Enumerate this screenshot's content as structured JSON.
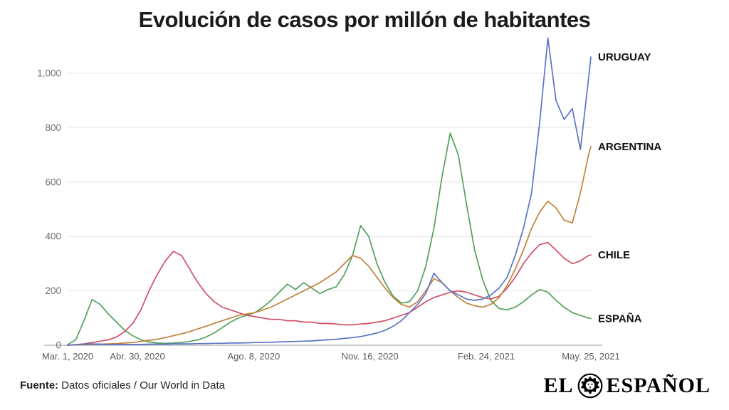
{
  "chart_data": {
    "type": "line",
    "title": "Evolución de casos por millón de habitantes",
    "x_unit": "days since Mar 1, 2020",
    "grid": true,
    "legend_position": "right-of-line-ends",
    "ylim": [
      0,
      1150
    ],
    "y_ticks": [
      0,
      200,
      400,
      600,
      800,
      1000
    ],
    "y_tick_labels": [
      "0",
      "200",
      "400",
      "600",
      "800",
      "1,000"
    ],
    "x_ticks": [
      {
        "day": 0,
        "label": "Mar. 1, 2020"
      },
      {
        "day": 60,
        "label": "Abr. 30, 2020"
      },
      {
        "day": 160,
        "label": "Ago. 8, 2020"
      },
      {
        "day": 260,
        "label": "Nov. 16, 2020"
      },
      {
        "day": 360,
        "label": "Feb. 24, 2021"
      },
      {
        "day": 450,
        "label": "May. 25, 2021"
      }
    ],
    "x_days": [
      0,
      7,
      14,
      21,
      28,
      35,
      42,
      49,
      56,
      63,
      70,
      77,
      84,
      91,
      98,
      105,
      112,
      119,
      126,
      133,
      140,
      147,
      154,
      161,
      168,
      175,
      182,
      189,
      196,
      203,
      210,
      217,
      224,
      231,
      238,
      245,
      252,
      259,
      266,
      273,
      280,
      287,
      294,
      301,
      308,
      315,
      322,
      329,
      336,
      343,
      350,
      357,
      364,
      371,
      378,
      385,
      392,
      399,
      406,
      413,
      420,
      427,
      434,
      441,
      448,
      450
    ],
    "series": [
      {
        "name": "URUGUAY",
        "color": "#5b74c6",
        "values": [
          0,
          2,
          4,
          5,
          4,
          3,
          3,
          3,
          3,
          3,
          4,
          4,
          4,
          5,
          5,
          5,
          6,
          6,
          7,
          7,
          8,
          8,
          9,
          10,
          10,
          11,
          12,
          13,
          14,
          15,
          16,
          18,
          20,
          22,
          25,
          28,
          32,
          38,
          45,
          55,
          70,
          90,
          120,
          150,
          190,
          265,
          230,
          200,
          185,
          170,
          165,
          170,
          185,
          210,
          250,
          330,
          430,
          560,
          820,
          1130,
          900,
          830,
          870,
          720,
          980,
          1060
        ]
      },
      {
        "name": "ARGENTINA",
        "color": "#c1813c",
        "values": [
          0,
          1,
          2,
          3,
          4,
          5,
          6,
          8,
          10,
          14,
          18,
          22,
          28,
          35,
          42,
          50,
          60,
          70,
          80,
          90,
          100,
          110,
          115,
          120,
          130,
          140,
          155,
          170,
          185,
          200,
          215,
          230,
          250,
          270,
          300,
          330,
          320,
          290,
          250,
          210,
          175,
          150,
          140,
          160,
          200,
          245,
          230,
          200,
          175,
          155,
          145,
          140,
          150,
          175,
          220,
          280,
          350,
          430,
          490,
          530,
          505,
          460,
          450,
          560,
          700,
          730
        ]
      },
      {
        "name": "CHILE",
        "color": "#d14f68",
        "values": [
          0,
          2,
          5,
          10,
          15,
          20,
          30,
          50,
          80,
          130,
          200,
          260,
          310,
          345,
          330,
          280,
          230,
          190,
          160,
          140,
          130,
          120,
          110,
          105,
          100,
          95,
          95,
          90,
          90,
          85,
          85,
          80,
          80,
          78,
          75,
          75,
          78,
          80,
          85,
          90,
          100,
          110,
          120,
          140,
          160,
          175,
          185,
          195,
          200,
          195,
          185,
          175,
          170,
          180,
          210,
          250,
          300,
          340,
          370,
          378,
          350,
          320,
          300,
          310,
          330,
          332
        ]
      },
      {
        "name": "ESPAÑA",
        "color": "#53a05c",
        "values": [
          2,
          20,
          90,
          168,
          150,
          115,
          85,
          55,
          35,
          20,
          12,
          8,
          7,
          8,
          10,
          14,
          20,
          30,
          45,
          65,
          85,
          100,
          110,
          120,
          140,
          165,
          195,
          225,
          205,
          230,
          210,
          190,
          205,
          215,
          260,
          330,
          440,
          400,
          300,
          230,
          180,
          155,
          160,
          200,
          290,
          430,
          620,
          780,
          700,
          520,
          350,
          240,
          165,
          135,
          130,
          140,
          160,
          185,
          205,
          195,
          165,
          140,
          120,
          110,
          100,
          98
        ]
      }
    ],
    "style": {
      "gridline_color": "#e4e4e4",
      "axis_color": "#9a9a9a",
      "tick_label_color": "#6f6f6f",
      "series_label_color": "#111111"
    }
  },
  "footer": {
    "source_label": "Fuente:",
    "source_text": "Datos oficiales / Our World in Data",
    "logo": {
      "left": "EL",
      "right": "ESPAÑOL"
    }
  }
}
